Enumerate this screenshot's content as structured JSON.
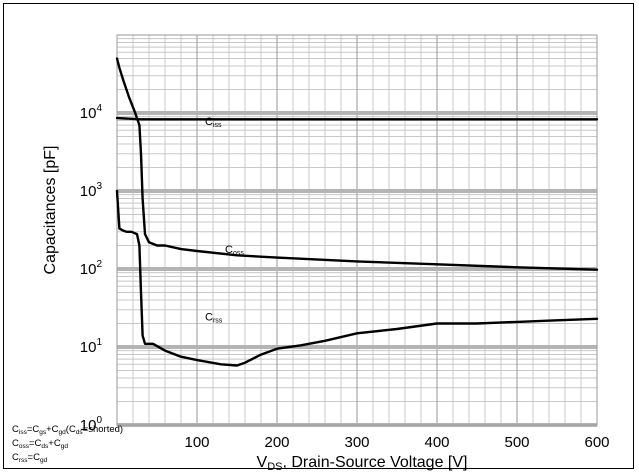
{
  "chart_data": {
    "type": "line",
    "title": "",
    "xlabel": {
      "main": "V",
      "sub": "DS",
      "rest": ", Drain-Source Voltage [V]"
    },
    "ylabel": "Capacitances [pF]",
    "xlim": [
      0,
      600
    ],
    "ylim": [
      1,
      100000
    ],
    "yscale": "log",
    "grid": true,
    "xticks": [
      "100",
      "200",
      "300",
      "400",
      "500",
      "600"
    ],
    "yticks": [
      {
        "value": 1,
        "base": "10",
        "exp": "0"
      },
      {
        "value": 10,
        "base": "10",
        "exp": "1"
      },
      {
        "value": 100,
        "base": "10",
        "exp": "2"
      },
      {
        "value": 1000,
        "base": "10",
        "exp": "3"
      },
      {
        "value": 10000,
        "base": "10",
        "exp": "4"
      }
    ],
    "series": [
      {
        "name": "Ciss",
        "label_main": "C",
        "label_sub": "iss",
        "label_at": [
          110,
          7000
        ],
        "x": [
          0,
          10,
          20,
          30,
          40,
          60,
          100,
          200,
          300,
          400,
          500,
          600
        ],
        "values": [
          8600,
          8500,
          8400,
          8300,
          8300,
          8300,
          8300,
          8300,
          8300,
          8300,
          8300,
          8300
        ]
      },
      {
        "name": "Coss",
        "label_main": "C",
        "label_sub": "oss",
        "label_at": [
          135,
          160
        ],
        "x": [
          0,
          3,
          8,
          15,
          22,
          28,
          30,
          32,
          35,
          40,
          50,
          60,
          80,
          100,
          150,
          200,
          300,
          400,
          500,
          600
        ],
        "values": [
          50000,
          38000,
          26000,
          16000,
          10500,
          7000,
          3000,
          800,
          280,
          220,
          200,
          200,
          180,
          170,
          150,
          140,
          125,
          115,
          105,
          98
        ]
      },
      {
        "name": "Crss",
        "label_main": "C",
        "label_sub": "rss",
        "label_at": [
          110,
          22
        ],
        "x": [
          0,
          3,
          8,
          12,
          18,
          25,
          28,
          30,
          32,
          35,
          45,
          60,
          80,
          100,
          130,
          150,
          160,
          180,
          200,
          230,
          260,
          300,
          350,
          400,
          450,
          500,
          550,
          600
        ],
        "values": [
          1000,
          330,
          310,
          300,
          300,
          280,
          200,
          50,
          14,
          11,
          11,
          9,
          7.5,
          6.8,
          6,
          5.8,
          6.3,
          8,
          9.5,
          10.5,
          12,
          15,
          17,
          20,
          20,
          21,
          22,
          23
        ]
      }
    ],
    "legend": {
      "lines": [
        [
          [
            "C",
            ""
          ],
          [
            "iss",
            "sub"
          ],
          [
            "=C",
            ""
          ],
          [
            "gs",
            "sub"
          ],
          [
            "+C",
            ""
          ],
          [
            "gd",
            "sub"
          ],
          [
            "(C",
            ""
          ],
          [
            "ds",
            "sub"
          ],
          [
            "=shorted)",
            ""
          ]
        ],
        [
          [
            "C",
            ""
          ],
          [
            "oss",
            "sub"
          ],
          [
            "=C",
            ""
          ],
          [
            "ds",
            "sub"
          ],
          [
            "+C",
            ""
          ],
          [
            "gd",
            "sub"
          ]
        ],
        [
          [
            "C",
            ""
          ],
          [
            "rss",
            "sub"
          ],
          [
            "=C",
            ""
          ],
          [
            "gd",
            "sub"
          ]
        ]
      ]
    }
  }
}
